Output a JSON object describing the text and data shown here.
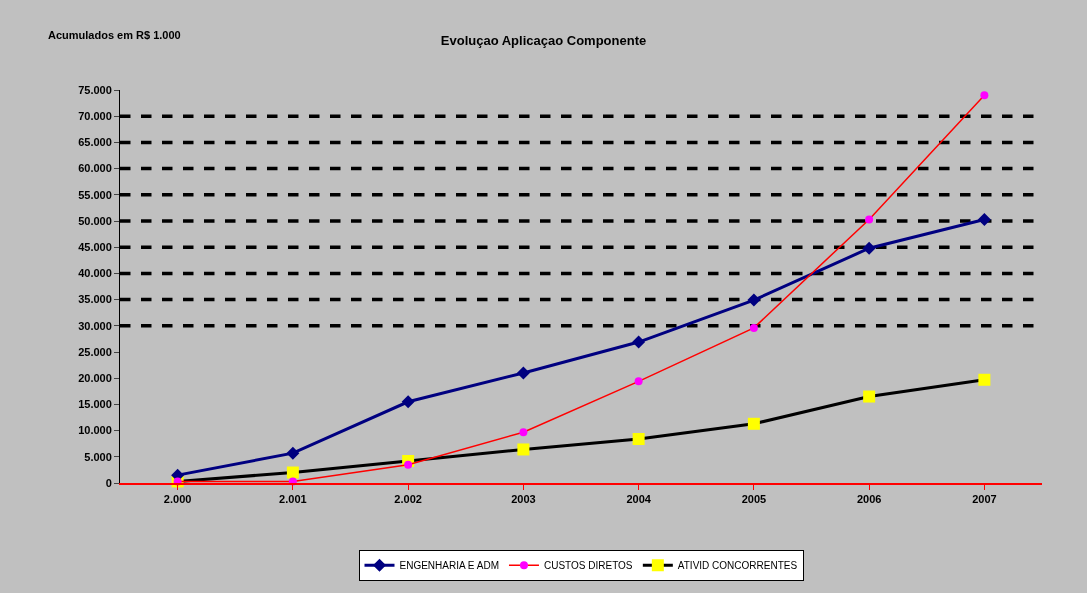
{
  "chart_data": {
    "type": "line",
    "title": "Evoluçao Aplicaçao Componente",
    "ylabel": "Acumulados em R$ 1.000",
    "categories": [
      "2.000",
      "2.001",
      "2.002",
      "2003",
      "2004",
      "2005",
      "2006",
      "2007"
    ],
    "series": [
      {
        "name": "ENGENHARIA E ADM",
        "color": "#000080",
        "marker": "diamond",
        "values": [
          1500,
          5700,
          15500,
          21000,
          26900,
          34900,
          44800,
          50300
        ]
      },
      {
        "name": "CUSTOS DIRETOS",
        "color": "#ff0000",
        "marker": "circle",
        "colors": [
          "#ff00ff",
          "#ff00ff",
          "#ff00ff",
          "#ff00ff",
          "#ff00ff",
          "#ff00ff",
          "#ff00ff",
          "#ff00ff"
        ],
        "values": [
          300,
          300,
          3500,
          9700,
          19400,
          29600,
          50300,
          74000
        ]
      },
      {
        "name": "ATIVID CONCORRENTES",
        "color": "#000000",
        "marker": "square",
        "colors": [
          "#ffff00",
          "#ffff00",
          "#ffff00",
          "#ffff00",
          "#ffff00",
          "#ffff00",
          "#ffff00",
          "#ffff00"
        ],
        "values": [
          300,
          2000,
          4200,
          6400,
          8400,
          11300,
          16500,
          19700
        ]
      }
    ],
    "ylim": [
      0,
      75000
    ],
    "yticks": [
      0,
      {
        "value": 5000,
        "label": "5.000"
      },
      {
        "value": 10000,
        "label": "10.000"
      },
      {
        "value": 15000,
        "label": "15.000"
      },
      {
        "value": 20000,
        "label": "20.000"
      },
      {
        "value": 25000,
        "label": "25.000"
      },
      {
        "value": 30000,
        "label": "30.000"
      },
      {
        "value": 35000,
        "label": "35.000"
      },
      {
        "value": 40000,
        "label": "40.000"
      },
      {
        "value": 45000,
        "label": "45.000"
      },
      {
        "value": 50000,
        "label": "50.000"
      },
      {
        "value": 55000,
        "label": "55.000"
      },
      {
        "value": 60000,
        "label": "60.000"
      },
      {
        "value": 65000,
        "label": "65.000"
      },
      {
        "value": 70000,
        "label": "70.000"
      },
      {
        "value": 75000,
        "label": "75.000"
      }
    ],
    "ref_lines": [
      {
        "axis": "y",
        "value": 30000,
        "color": "#000000",
        "line_style": "dashed"
      },
      {
        "axis": "y",
        "value": 35000,
        "color": "#000000",
        "line_style": "dashed"
      },
      {
        "axis": "y",
        "value": 40000,
        "color": "#000000",
        "line_style": "dashed"
      },
      {
        "axis": "y",
        "value": 45000,
        "color": "#000000",
        "line_style": "dashed"
      },
      {
        "axis": "y",
        "value": 50000,
        "color": "#000000",
        "line_style": "dashed"
      },
      {
        "axis": "y",
        "value": 55000,
        "color": "#000000",
        "line_style": "dashed"
      },
      {
        "axis": "y",
        "value": 60000,
        "color": "#000000",
        "line_style": "dashed"
      },
      {
        "axis": "y",
        "value": 65000,
        "color": "#000000",
        "line_style": "dashed"
      },
      {
        "axis": "y",
        "value": 70000,
        "color": "#000000",
        "line_style": "dashed"
      }
    ],
    "legend": "bottom",
    "grid": false
  }
}
